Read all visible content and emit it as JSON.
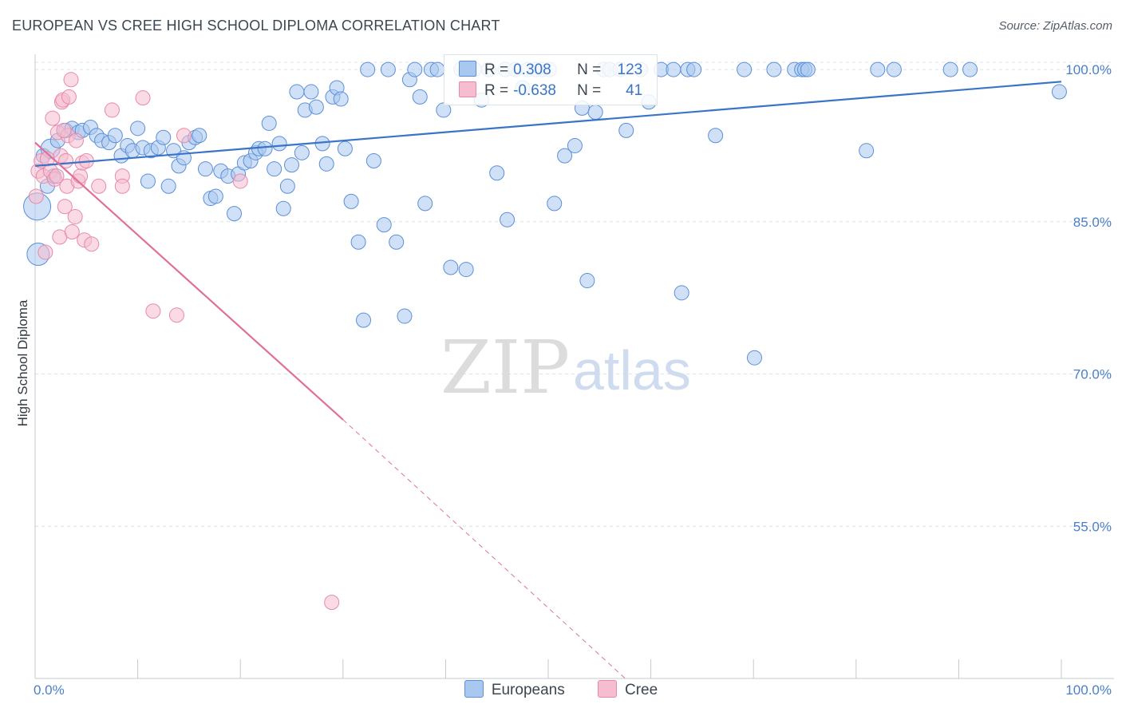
{
  "title": "EUROPEAN VS CREE HIGH SCHOOL DIPLOMA CORRELATION CHART",
  "source": "Source: ZipAtlas.com",
  "watermark": {
    "zip": "ZIP",
    "atlas": "atlas"
  },
  "colors": {
    "blue_fill": "#a9c8f0",
    "blue_stroke": "#5b8fd6",
    "blue_line": "#3a74c8",
    "pink_fill": "#f6bdd0",
    "pink_stroke": "#e889a8",
    "pink_line": "#e0709a",
    "grid": "#dde1e6",
    "axis": "#c5cad0",
    "tick_text": "#4a7fc9"
  },
  "stats": {
    "europeans": {
      "r_label": "R =",
      "r_value": "0.308",
      "n_label": "N =",
      "n_value": "123"
    },
    "cree": {
      "r_label": "R =",
      "r_value": "-0.638",
      "n_label": "N =",
      "n_value": "41"
    }
  },
  "legend": {
    "europeans": "Europeans",
    "cree": "Cree"
  },
  "chart_data": {
    "type": "scatter",
    "title": "EUROPEAN VS CREE HIGH SCHOOL DIPLOMA CORRELATION CHART",
    "xlabel": "",
    "ylabel": "High School Diploma",
    "xlim": [
      0,
      100
    ],
    "ylim": [
      40,
      101.5
    ],
    "x_tick_labels": [
      "0.0%",
      "100.0%"
    ],
    "y_ticks": [
      55,
      70,
      85,
      100
    ],
    "y_tick_labels": [
      "55.0%",
      "70.0%",
      "85.0%",
      "100.0%"
    ],
    "grid": true,
    "legend_position": "bottom",
    "series": [
      {
        "name": "Europeans",
        "trend": {
          "x": [
            0,
            100
          ],
          "y": [
            90.5,
            98.8
          ],
          "style": "solid"
        },
        "points": [
          [
            0.2,
            86.5
          ],
          [
            0.3,
            81.8
          ],
          [
            0.8,
            91.5
          ],
          [
            1.2,
            88.5
          ],
          [
            1.5,
            92.2
          ],
          [
            2.2,
            93.0
          ],
          [
            3.0,
            94.0
          ],
          [
            3.6,
            94.2
          ],
          [
            4.2,
            93.8
          ],
          [
            4.6,
            94.0
          ],
          [
            5.4,
            94.3
          ],
          [
            6.0,
            93.5
          ],
          [
            6.5,
            93.0
          ],
          [
            7.2,
            92.8
          ],
          [
            7.8,
            93.5
          ],
          [
            8.4,
            91.5
          ],
          [
            9.0,
            92.5
          ],
          [
            9.5,
            92.0
          ],
          [
            10.0,
            94.2
          ],
          [
            10.5,
            92.3
          ],
          [
            11.0,
            89.0
          ],
          [
            11.3,
            92.0
          ],
          [
            12.0,
            92.3
          ],
          [
            12.5,
            93.3
          ],
          [
            13.0,
            88.5
          ],
          [
            13.5,
            92.0
          ],
          [
            14.0,
            90.5
          ],
          [
            14.5,
            91.3
          ],
          [
            15.0,
            92.8
          ],
          [
            15.6,
            93.3
          ],
          [
            16.0,
            93.5
          ],
          [
            16.6,
            90.2
          ],
          [
            17.1,
            87.3
          ],
          [
            17.6,
            87.5
          ],
          [
            18.1,
            90.0
          ],
          [
            18.8,
            89.5
          ],
          [
            19.4,
            85.8
          ],
          [
            19.8,
            89.7
          ],
          [
            20.4,
            90.8
          ],
          [
            21.0,
            91.0
          ],
          [
            21.5,
            91.8
          ],
          [
            21.8,
            92.2
          ],
          [
            22.4,
            92.2
          ],
          [
            22.8,
            94.7
          ],
          [
            23.3,
            90.2
          ],
          [
            23.8,
            92.7
          ],
          [
            24.2,
            86.3
          ],
          [
            24.6,
            88.5
          ],
          [
            25.0,
            90.6
          ],
          [
            25.5,
            97.8
          ],
          [
            26.0,
            91.8
          ],
          [
            26.3,
            96.0
          ],
          [
            26.9,
            97.8
          ],
          [
            27.4,
            96.3
          ],
          [
            28.0,
            92.7
          ],
          [
            28.4,
            90.7
          ],
          [
            29.0,
            97.3
          ],
          [
            29.4,
            98.2
          ],
          [
            29.8,
            97.1
          ],
          [
            30.2,
            92.2
          ],
          [
            30.8,
            87.0
          ],
          [
            31.5,
            83.0
          ],
          [
            32.0,
            75.3
          ],
          [
            32.4,
            100.0
          ],
          [
            33.0,
            91.0
          ],
          [
            34.0,
            84.7
          ],
          [
            34.4,
            100.0
          ],
          [
            35.2,
            83.0
          ],
          [
            36.0,
            75.7
          ],
          [
            36.5,
            99.0
          ],
          [
            37.0,
            100.0
          ],
          [
            37.5,
            97.3
          ],
          [
            38.0,
            86.8
          ],
          [
            38.6,
            100.0
          ],
          [
            39.2,
            100.0
          ],
          [
            39.8,
            96.0
          ],
          [
            40.5,
            80.5
          ],
          [
            41.5,
            100.0
          ],
          [
            42.0,
            80.3
          ],
          [
            42.8,
            100.0
          ],
          [
            43.5,
            97.0
          ],
          [
            44.2,
            100.0
          ],
          [
            45.0,
            89.8
          ],
          [
            45.8,
            100.0
          ],
          [
            46.0,
            85.2
          ],
          [
            46.8,
            100.0
          ],
          [
            47.5,
            98.2
          ],
          [
            48.0,
            100.0
          ],
          [
            48.8,
            100.0
          ],
          [
            49.4,
            100.0
          ],
          [
            50.1,
            100.0
          ],
          [
            50.6,
            86.8
          ],
          [
            51.6,
            91.5
          ],
          [
            52.6,
            92.5
          ],
          [
            53.3,
            96.2
          ],
          [
            53.8,
            79.2
          ],
          [
            54.6,
            95.8
          ],
          [
            55.4,
            100.0
          ],
          [
            56.0,
            100.0
          ],
          [
            57.0,
            100.0
          ],
          [
            57.6,
            94.0
          ],
          [
            59.0,
            100.0
          ],
          [
            59.8,
            96.8
          ],
          [
            61.0,
            100.0
          ],
          [
            62.2,
            100.0
          ],
          [
            63.0,
            78.0
          ],
          [
            63.6,
            100.0
          ],
          [
            64.2,
            100.0
          ],
          [
            66.3,
            93.5
          ],
          [
            69.1,
            100.0
          ],
          [
            70.1,
            71.6
          ],
          [
            72.0,
            100.0
          ],
          [
            74.0,
            100.0
          ],
          [
            74.7,
            100.0
          ],
          [
            75.0,
            100.0
          ],
          [
            75.3,
            100.0
          ],
          [
            81.0,
            92.0
          ],
          [
            82.1,
            100.0
          ],
          [
            83.7,
            100.0
          ],
          [
            89.2,
            100.0
          ],
          [
            91.1,
            100.0
          ],
          [
            99.8,
            97.8
          ],
          [
            1.8,
            89.5
          ]
        ]
      },
      {
        "name": "Cree",
        "trend": {
          "x": [
            0,
            30
          ],
          "y": [
            92.8,
            65.5
          ],
          "style": "solid",
          "extension": {
            "x": [
              30,
              57.5
            ],
            "y": [
              65.5,
              40.0
            ],
            "style": "dashed"
          }
        },
        "points": [
          [
            0.1,
            87.5
          ],
          [
            0.3,
            90.0
          ],
          [
            0.6,
            91.0
          ],
          [
            0.8,
            89.5
          ],
          [
            1.2,
            91.2
          ],
          [
            1.5,
            90.0
          ],
          [
            1.7,
            95.2
          ],
          [
            1.9,
            89.2
          ],
          [
            2.1,
            89.5
          ],
          [
            2.2,
            93.8
          ],
          [
            2.4,
            83.5
          ],
          [
            2.5,
            91.5
          ],
          [
            2.6,
            96.8
          ],
          [
            2.7,
            97.0
          ],
          [
            2.9,
            86.5
          ],
          [
            3.0,
            91.0
          ],
          [
            3.1,
            88.5
          ],
          [
            3.2,
            93.5
          ],
          [
            3.3,
            97.3
          ],
          [
            3.5,
            99.0
          ],
          [
            3.6,
            84.0
          ],
          [
            3.9,
            85.5
          ],
          [
            4.0,
            93.0
          ],
          [
            4.2,
            89.0
          ],
          [
            4.4,
            89.5
          ],
          [
            4.6,
            90.8
          ],
          [
            4.8,
            83.2
          ],
          [
            5.0,
            91.0
          ],
          [
            5.5,
            82.8
          ],
          [
            6.2,
            88.5
          ],
          [
            7.5,
            96.0
          ],
          [
            8.5,
            89.5
          ],
          [
            8.5,
            88.5
          ],
          [
            10.5,
            97.2
          ],
          [
            11.5,
            76.2
          ],
          [
            13.8,
            75.8
          ],
          [
            14.5,
            93.5
          ],
          [
            20.0,
            89.0
          ],
          [
            28.9,
            47.5
          ],
          [
            1.0,
            82.0
          ],
          [
            2.8,
            94.0
          ]
        ]
      }
    ]
  }
}
